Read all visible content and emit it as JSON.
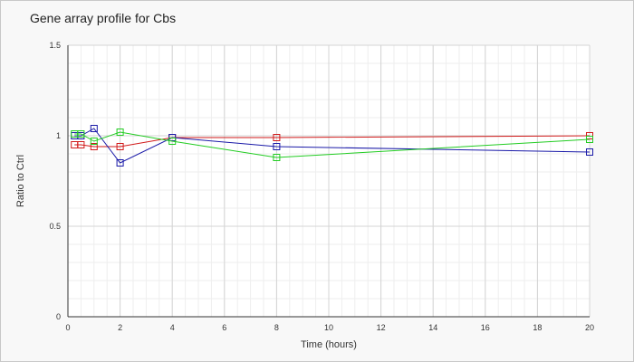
{
  "chart_data": {
    "type": "line",
    "title": "Gene array profile for Cbs",
    "xlabel": "Time (hours)",
    "ylabel": "Ratio to Ctrl",
    "xlim": [
      0,
      20
    ],
    "ylim": [
      0,
      1.5
    ],
    "xticks": [
      0,
      2,
      4,
      6,
      8,
      10,
      12,
      14,
      16,
      18,
      20
    ],
    "yticks": [
      0,
      0.5,
      1,
      1.5
    ],
    "xtick_labels": [
      "0",
      "2",
      "4",
      "6",
      "8",
      "10",
      "12",
      "14",
      "16",
      "18",
      "20"
    ],
    "ytick_labels": [
      "0",
      "0.5",
      "1",
      "1.5"
    ],
    "grid": true,
    "minor_grid": true,
    "legend": "none",
    "series": [
      {
        "color": "#d11a1a",
        "marker": "square",
        "x": [
          0.25,
          0.5,
          1,
          2,
          4,
          8,
          20
        ],
        "y": [
          0.95,
          0.95,
          0.94,
          0.94,
          0.99,
          0.99,
          1.0
        ]
      },
      {
        "color": "#1a1aa8",
        "marker": "square",
        "x": [
          0.25,
          0.5,
          1,
          2,
          4,
          8,
          20
        ],
        "y": [
          1.0,
          1.0,
          1.04,
          0.85,
          0.99,
          0.94,
          0.91
        ]
      },
      {
        "color": "#22cc22",
        "marker": "square",
        "x": [
          0.25,
          0.5,
          1,
          2,
          4,
          8,
          20
        ],
        "y": [
          1.01,
          1.01,
          0.97,
          1.02,
          0.97,
          0.88,
          0.98
        ]
      }
    ]
  }
}
